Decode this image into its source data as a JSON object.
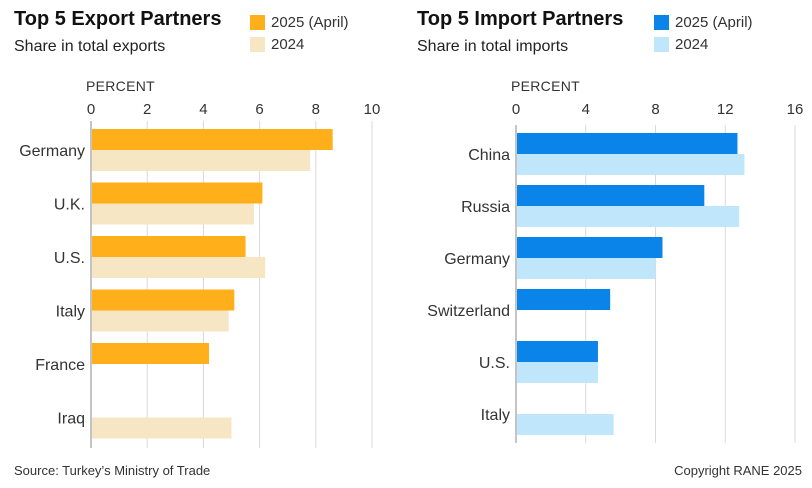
{
  "colors": {
    "export_current": "#FFAF1A",
    "export_prior": "#F7E6C4",
    "import_current": "#0A84E8",
    "import_prior": "#BFE6FB",
    "grid": "#D9D9D9",
    "axis": "#B0B0B0"
  },
  "chart_data": [
    {
      "type": "bar",
      "orientation": "horizontal",
      "title": "Top 5 Export Partners",
      "subtitle": "Share in total exports",
      "unit_label": "PERCENT",
      "categories": [
        "Germany",
        "U.K.",
        "U.S.",
        "Italy",
        "France",
        "Iraq"
      ],
      "series": [
        {
          "name": "2025 (April)",
          "values": [
            8.6,
            6.1,
            5.5,
            5.1,
            4.2,
            null
          ]
        },
        {
          "name": "2024",
          "values": [
            7.8,
            5.8,
            6.2,
            4.9,
            null,
            5.0
          ]
        }
      ],
      "xlim": [
        0,
        10
      ],
      "ticks": [
        "0",
        "2",
        "4",
        "6",
        "8",
        "10"
      ],
      "grid": true,
      "legend_position": "top-right"
    },
    {
      "type": "bar",
      "orientation": "horizontal",
      "title": "Top 5 Import Partners",
      "subtitle": "Share in total imports",
      "unit_label": "PERCENT",
      "categories": [
        "China",
        "Russia",
        "Germany",
        "Switzerland",
        "U.S.",
        "Italy"
      ],
      "series": [
        {
          "name": "2025 (April)",
          "values": [
            12.7,
            10.8,
            8.4,
            5.4,
            4.7,
            null
          ]
        },
        {
          "name": "2024",
          "values": [
            13.1,
            12.8,
            8.0,
            null,
            4.7,
            5.6
          ]
        }
      ],
      "xlim": [
        0,
        16
      ],
      "ticks": [
        "0",
        "4",
        "8",
        "12",
        "16"
      ],
      "grid": true,
      "legend_position": "top-right"
    }
  ],
  "footer": {
    "source": "Source: Turkey’s Ministry of Trade",
    "copyright": "Copyright RANE 2025"
  }
}
